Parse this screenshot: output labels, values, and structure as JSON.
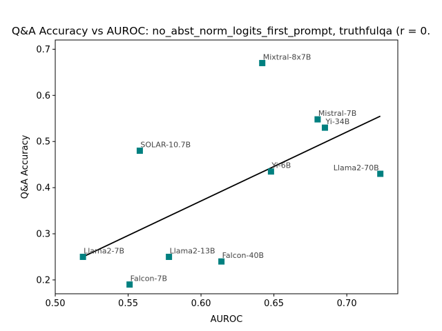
{
  "chart_data": {
    "type": "scatter",
    "title": "Q&A Accuracy vs AUROC: no_abst_norm_logits_first_prompt, truthfulqa (r = 0.",
    "xlabel": "AUROC",
    "ylabel": "Q&A Accuracy",
    "xlim": [
      0.5,
      0.735
    ],
    "ylim": [
      0.17,
      0.72
    ],
    "xticks": [
      "0.50",
      "0.55",
      "0.60",
      "0.65",
      "0.70"
    ],
    "yticks": [
      "0.2",
      "0.3",
      "0.4",
      "0.5",
      "0.6",
      "0.7"
    ],
    "grid": false,
    "marker_color": "#008080",
    "trendline_color": "#000000",
    "trendline": {
      "x": [
        0.519,
        0.723
      ],
      "y": [
        0.25,
        0.555
      ]
    },
    "points": [
      {
        "label": "Mixtral-8x7B",
        "x": 0.642,
        "y": 0.67
      },
      {
        "label": "Mistral-7B",
        "x": 0.68,
        "y": 0.548
      },
      {
        "label": "Yi-34B",
        "x": 0.685,
        "y": 0.53
      },
      {
        "label": "SOLAR-10.7B",
        "x": 0.558,
        "y": 0.48
      },
      {
        "label": "Yi-6B",
        "x": 0.648,
        "y": 0.435
      },
      {
        "label": "Llama2-70B",
        "x": 0.723,
        "y": 0.43
      },
      {
        "label": "Llama2-7B",
        "x": 0.519,
        "y": 0.25
      },
      {
        "label": "Llama2-13B",
        "x": 0.578,
        "y": 0.25
      },
      {
        "label": "Falcon-40B",
        "x": 0.614,
        "y": 0.24
      },
      {
        "label": "Falcon-7B",
        "x": 0.551,
        "y": 0.19
      }
    ]
  }
}
